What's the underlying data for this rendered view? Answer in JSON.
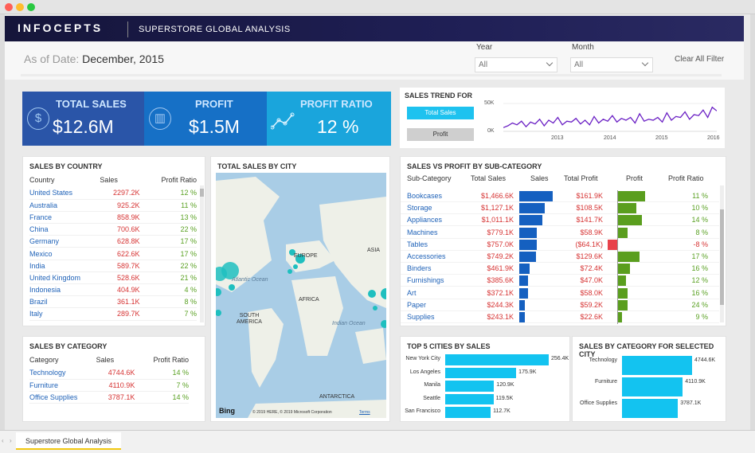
{
  "header": {
    "logo": "INFOCEPTS",
    "title": "SUPERSTORE GLOBAL ANALYSIS"
  },
  "filters": {
    "as_of_label": "As of Date:",
    "as_of_value": "December, 2015",
    "year_label": "Year",
    "year_value": "All",
    "month_label": "Month",
    "month_value": "All",
    "clear": "Clear All Filter"
  },
  "kpis": [
    {
      "label": "TOTAL SALES",
      "value": "$12.6M",
      "icon": "money-bag-icon",
      "color": "#2a55a8"
    },
    {
      "label": "PROFIT",
      "value": "$1.5M",
      "icon": "bar-chart-icon",
      "color": "#1670c6"
    },
    {
      "label": "PROFIT RATIO",
      "value": "12 %",
      "icon": "line-chart-icon",
      "color": "#1aa5dc"
    }
  ],
  "trend": {
    "title": "SALES TREND FOR",
    "btn_sales": "Total Sales",
    "btn_profit": "Profit",
    "y_ticks": [
      "50K",
      "0K"
    ],
    "x_ticks": [
      "2013",
      "2014",
      "2015",
      "2016"
    ],
    "chart_data": {
      "type": "line",
      "x_range": [
        2012.0,
        2016.0
      ],
      "ylim": [
        0,
        60000
      ],
      "values": [
        8000,
        12000,
        18000,
        14000,
        22000,
        10000,
        20000,
        16000,
        26000,
        12000,
        24000,
        18000,
        30000,
        14000,
        22000,
        20000,
        28000,
        16000,
        24000,
        14000,
        32000,
        18000,
        26000,
        22000,
        34000,
        20000,
        28000,
        24000,
        30000,
        18000,
        38000,
        22000,
        26000,
        24000,
        30000,
        20000,
        40000,
        24000,
        32000,
        30000,
        42000,
        26000,
        36000,
        34000,
        46000,
        30000,
        52000,
        44000
      ]
    }
  },
  "country": {
    "title": "SALES BY COUNTRY",
    "headers": [
      "Country",
      "Sales",
      "Profit Ratio"
    ],
    "rows": [
      [
        "United States",
        "2297.2K",
        "12 %"
      ],
      [
        "Australia",
        "925.2K",
        "11 %"
      ],
      [
        "France",
        "858.9K",
        "13 %"
      ],
      [
        "China",
        "700.6K",
        "22 %"
      ],
      [
        "Germany",
        "628.8K",
        "17 %"
      ],
      [
        "Mexico",
        "622.6K",
        "17 %"
      ],
      [
        "India",
        "589.7K",
        "22 %"
      ],
      [
        "United Kingdom",
        "528.6K",
        "21 %"
      ],
      [
        "Indonesia",
        "404.9K",
        "4 %"
      ],
      [
        "Brazil",
        "361.1K",
        "8 %"
      ],
      [
        "Italy",
        "289.7K",
        "7 %"
      ]
    ]
  },
  "category": {
    "title": "SALES BY CATEGORY",
    "headers": [
      "Category",
      "Sales",
      "Profit Ratio"
    ],
    "rows": [
      [
        "Technology",
        "4744.6K",
        "14 %"
      ],
      [
        "Furniture",
        "4110.9K",
        "7 %"
      ],
      [
        "Office Supplies",
        "3787.1K",
        "14 %"
      ]
    ]
  },
  "map": {
    "title": "TOTAL SALES BY CITY",
    "labels": [
      "EUROPE",
      "ASIA",
      "Atlantic Ocean",
      "AFRICA",
      "SOUTH AMERICA",
      "Indian Ocean",
      "ANTARCTICA"
    ],
    "bing": "Bing",
    "copyright": "© 2019 HERE, © 2019 Microsoft Corporation",
    "terms": "Terms"
  },
  "subcat": {
    "title": "SALES VS PROFIT BY SUB-CATEGORY",
    "headers": [
      "Sub-Category",
      "Total Sales",
      "Sales",
      "Total Profit",
      "Profit",
      "Profit Ratio"
    ],
    "rows": [
      {
        "name": "Bookcases",
        "sales": "$1,466.6K",
        "sales_v": 1466.6,
        "profit": "$161.9K",
        "profit_v": 161.9,
        "ratio": "11 %"
      },
      {
        "name": "Storage",
        "sales": "$1,127.1K",
        "sales_v": 1127.1,
        "profit": "$108.5K",
        "profit_v": 108.5,
        "ratio": "10 %"
      },
      {
        "name": "Appliances",
        "sales": "$1,011.1K",
        "sales_v": 1011.1,
        "profit": "$141.7K",
        "profit_v": 141.7,
        "ratio": "14 %"
      },
      {
        "name": "Machines",
        "sales": "$779.1K",
        "sales_v": 779.1,
        "profit": "$58.9K",
        "profit_v": 58.9,
        "ratio": "8 %"
      },
      {
        "name": "Tables",
        "sales": "$757.0K",
        "sales_v": 757.0,
        "profit": "($64.1K)",
        "profit_v": -64.1,
        "ratio": "-8 %"
      },
      {
        "name": "Accessories",
        "sales": "$749.2K",
        "sales_v": 749.2,
        "profit": "$129.6K",
        "profit_v": 129.6,
        "ratio": "17 %"
      },
      {
        "name": "Binders",
        "sales": "$461.9K",
        "sales_v": 461.9,
        "profit": "$72.4K",
        "profit_v": 72.4,
        "ratio": "16 %"
      },
      {
        "name": "Furnishings",
        "sales": "$385.6K",
        "sales_v": 385.6,
        "profit": "$47.0K",
        "profit_v": 47.0,
        "ratio": "12 %"
      },
      {
        "name": "Art",
        "sales": "$372.1K",
        "sales_v": 372.1,
        "profit": "$58.0K",
        "profit_v": 58.0,
        "ratio": "16 %"
      },
      {
        "name": "Paper",
        "sales": "$244.3K",
        "sales_v": 244.3,
        "profit": "$59.2K",
        "profit_v": 59.2,
        "ratio": "24 %"
      },
      {
        "name": "Supplies",
        "sales": "$243.1K",
        "sales_v": 243.1,
        "profit": "$22.6K",
        "profit_v": 22.6,
        "ratio": "9 %"
      }
    ]
  },
  "top_cities": {
    "title": "TOP 5 CITIES BY SALES",
    "chart_data": {
      "type": "bar",
      "categories": [
        "New York City",
        "Los Angeles",
        "Manila",
        "Seattle",
        "San Francisco"
      ],
      "values": [
        256.4,
        175.9,
        120.9,
        119.5,
        112.7
      ],
      "labels": [
        "256.4K",
        "175.9K",
        "120.9K",
        "119.5K",
        "112.7K"
      ]
    }
  },
  "cat_sel": {
    "title": "SALES BY CATEGORY FOR SELECTED CITY",
    "chart_data": {
      "type": "bar",
      "categories": [
        "Technology",
        "Furniture",
        "Office Supplies"
      ],
      "values": [
        4744.6,
        4110.9,
        3787.1
      ],
      "labels": [
        "4744.6K",
        "4110.9K",
        "3787.1K"
      ]
    }
  },
  "footer": {
    "tab": "Superstore Global Analysis"
  },
  "colors": {
    "blue": "#1f62b8",
    "green": "#5aa123",
    "red": "#d63333",
    "sales_bar": "#1560c0",
    "profit_bar": "#5a9e1e",
    "cyan": "#13c3f0"
  }
}
